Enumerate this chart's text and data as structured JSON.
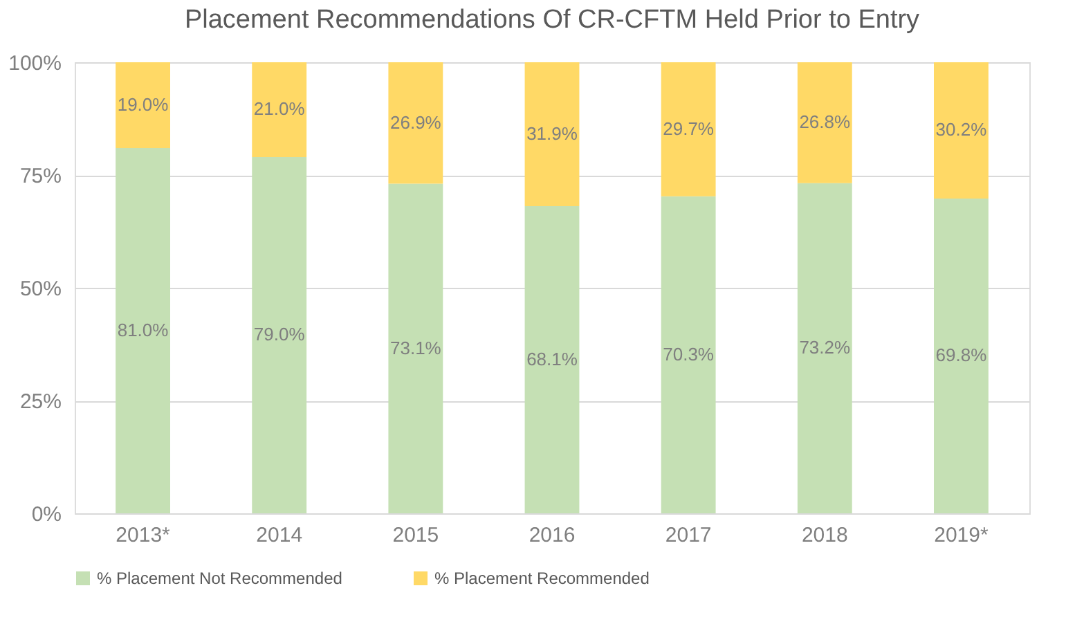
{
  "chart_data": {
    "type": "bar",
    "title": "Placement Recommendations Of CR-CFTM Held Prior to Entry",
    "categories": [
      "2013*",
      "2014",
      "2015",
      "2016",
      "2017",
      "2018",
      "2019*"
    ],
    "stacked": true,
    "series": [
      {
        "name": "% Placement Not Recommended",
        "color": "#c5e0b4",
        "values": [
          81.0,
          79.0,
          73.1,
          68.1,
          70.3,
          73.2,
          69.8
        ],
        "value_labels": [
          "81.0%",
          "79.0%",
          "73.1%",
          "68.1%",
          "70.3%",
          "73.2%",
          "69.8%"
        ]
      },
      {
        "name": "% Placement Recommended",
        "color": "#ffd966",
        "values": [
          19.0,
          21.0,
          26.9,
          31.9,
          29.7,
          26.8,
          30.2
        ],
        "value_labels": [
          "19.0%",
          "21.0%",
          "26.9%",
          "31.9%",
          "29.7%",
          "26.8%",
          "30.2%"
        ]
      }
    ],
    "ylim": [
      0,
      100
    ],
    "yticks": [
      {
        "value": 0,
        "label": "0%"
      },
      {
        "value": 25,
        "label": "25%"
      },
      {
        "value": 50,
        "label": "50%"
      },
      {
        "value": 75,
        "label": "75%"
      },
      {
        "value": 100,
        "label": "100%"
      }
    ],
    "grid": "y",
    "legend": "bottom"
  }
}
